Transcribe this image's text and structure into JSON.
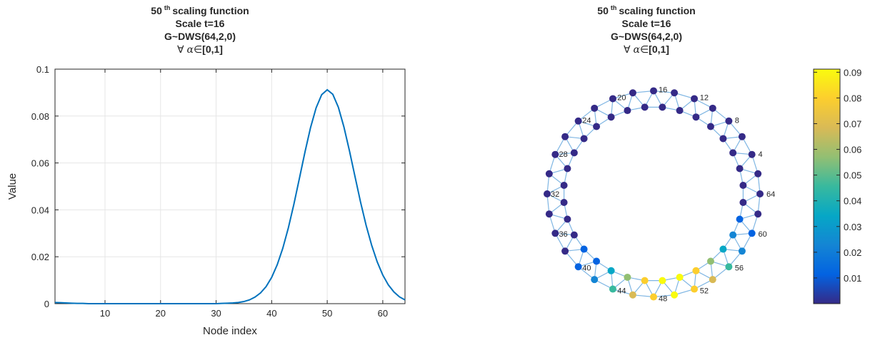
{
  "left_title": {
    "n": "50",
    "sup": "th",
    "rest": "scaling function",
    "scale": "Scale t=16",
    "graph": "G~DWS(64,2,0)",
    "forall": "∀",
    "alpha": "α",
    "elem": "∈",
    "range": "[0,1]"
  },
  "right_title": {
    "n": "50",
    "sup": "th",
    "rest": "scaling function",
    "scale": "Scale t=16",
    "graph": "G~DWS(64,2,0)",
    "forall": "∀",
    "alpha": "α",
    "elem": "∈",
    "range": "[0,1]"
  },
  "colors": {
    "line": "#0072BD",
    "grid": "#e6e6e6",
    "edge": "#7fb6e3",
    "parula": [
      "#352a87",
      "#0363e1",
      "#1485d4",
      "#06a7c6",
      "#38b99e",
      "#92bf73",
      "#d9ba56",
      "#fcce2e",
      "#f9fb0e"
    ]
  },
  "chart_data": [
    {
      "type": "line",
      "xlabel": "Node index",
      "ylabel": "Value",
      "xlim": [
        1,
        64
      ],
      "ylim": [
        0,
        0.1
      ],
      "xticks": [
        10,
        20,
        30,
        40,
        50,
        60
      ],
      "yticks": [
        0,
        0.02,
        0.04,
        0.06,
        0.08,
        0.1
      ],
      "ytick_labels": [
        "0",
        "0.02",
        "0.04",
        "0.06",
        "0.08",
        "0.1"
      ],
      "grid": true,
      "x": [
        1,
        2,
        3,
        4,
        5,
        6,
        7,
        8,
        9,
        10,
        11,
        12,
        13,
        14,
        15,
        16,
        17,
        18,
        19,
        20,
        21,
        22,
        23,
        24,
        25,
        26,
        27,
        28,
        29,
        30,
        31,
        32,
        33,
        34,
        35,
        36,
        37,
        38,
        39,
        40,
        41,
        42,
        43,
        44,
        45,
        46,
        47,
        48,
        49,
        50,
        51,
        52,
        53,
        54,
        55,
        56,
        57,
        58,
        59,
        60,
        61,
        62,
        63,
        64
      ],
      "y": [
        0.0005,
        0.0004,
        0.0003,
        0.0002,
        0.0001,
        0.0001,
        0,
        0,
        0,
        0,
        0,
        0,
        0,
        0,
        0,
        0,
        0,
        0,
        0,
        0,
        0,
        0,
        0,
        0,
        0,
        0,
        0,
        0,
        0,
        0,
        0.0001,
        0.0002,
        0.0003,
        0.0005,
        0.0009,
        0.0016,
        0.0028,
        0.0046,
        0.0073,
        0.0112,
        0.0166,
        0.0236,
        0.0323,
        0.0424,
        0.0535,
        0.0647,
        0.0751,
        0.0835,
        0.0891,
        0.0912,
        0.0893,
        0.0838,
        0.0754,
        0.0652,
        0.0542,
        0.0433,
        0.0334,
        0.0249,
        0.0178,
        0.0122,
        0.008,
        0.005,
        0.0029,
        0.0016
      ]
    },
    {
      "type": "graph",
      "node_labels": [
        "4",
        "8",
        "12",
        "16",
        "20",
        "24",
        "28",
        "32",
        "36",
        "40",
        "44",
        "48",
        "52",
        "56",
        "60",
        "64"
      ],
      "colorbar_ticks": [
        0.01,
        0.02,
        0.03,
        0.04,
        0.05,
        0.06,
        0.07,
        0.08,
        0.09
      ],
      "colorbar_tick_labels": [
        "0.01",
        "0.02",
        "0.03",
        "0.04",
        "0.05",
        "0.06",
        "0.07",
        "0.08",
        "0.09"
      ],
      "colorbar_range": [
        0,
        0.0912
      ]
    }
  ]
}
